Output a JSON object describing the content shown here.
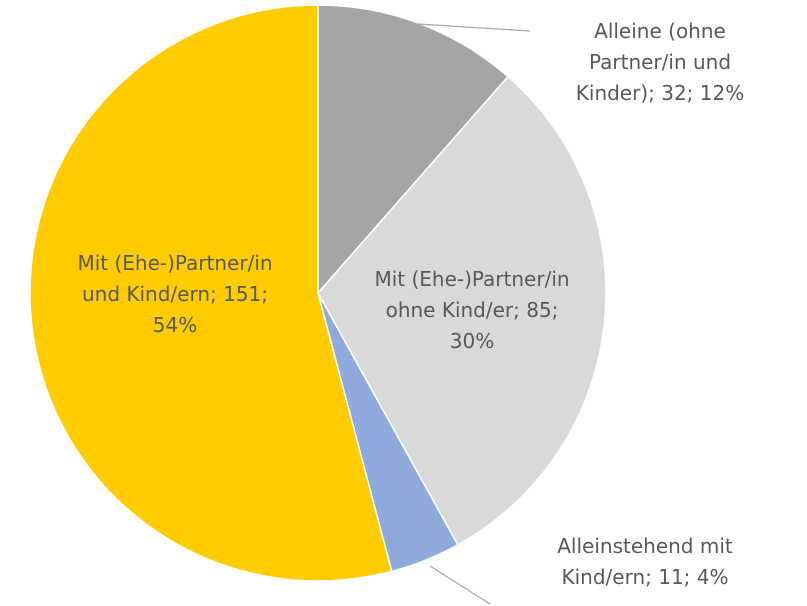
{
  "chart_data": {
    "type": "pie",
    "values": [
      32,
      85,
      11,
      151
    ],
    "value_labels": [
      "Alleine (ohne Partner/in und Kinder); 32; 12%",
      "Mit (Ehe-)Partner/in ohne Kind/er; 85; 30%",
      "Alleinstehend mit Kind/ern; 11; 4%",
      "Mit (Ehe-)Partner/in und Kind/ern; 151; 54%"
    ],
    "colors": [
      "#a5a5a5",
      "#d9d9d9",
      "#8faadc",
      "#ffcc00"
    ]
  }
}
